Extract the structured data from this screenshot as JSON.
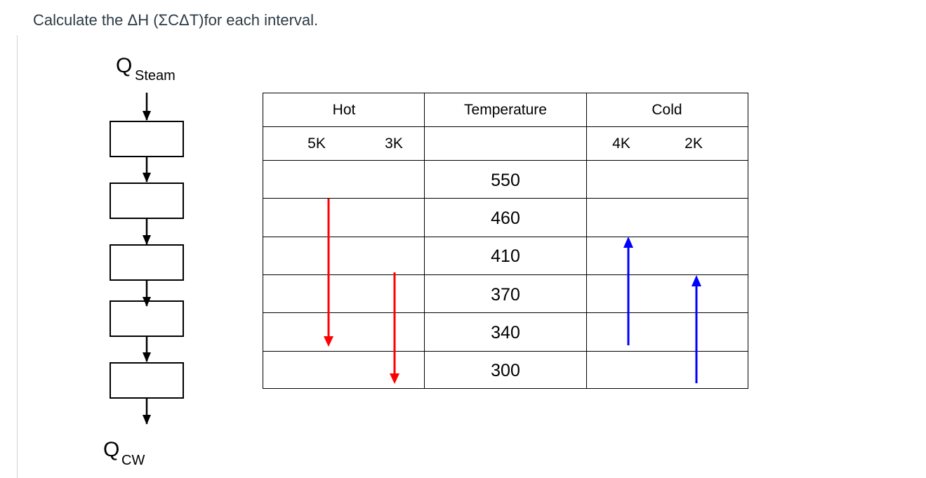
{
  "question": "Calculate the ΔH (ΣCΔT)for each interval.",
  "cascade": {
    "top_symbol": "Q",
    "top_subscript": "Steam",
    "bottom_symbol": "Q",
    "bottom_subscript": "CW",
    "box_count": 5
  },
  "table": {
    "headers": {
      "hot": "Hot",
      "temperature": "Temperature",
      "cold": "Cold"
    },
    "hot_streams": [
      "5K",
      "3K"
    ],
    "cold_streams": [
      "4K",
      "2K"
    ],
    "temperatures": [
      "550",
      "460",
      "410",
      "370",
      "340",
      "300"
    ]
  },
  "streams": [
    {
      "name": "5K",
      "side": "hot",
      "from": "460",
      "to": "340",
      "color": "#ff0000"
    },
    {
      "name": "3K",
      "side": "hot",
      "from": "370",
      "to": "300",
      "color": "#ff0000"
    },
    {
      "name": "4K",
      "side": "cold",
      "from": "340",
      "to": "410",
      "color": "#0000ff"
    },
    {
      "name": "2K",
      "side": "cold",
      "from": "300",
      "to": "370",
      "color": "#0000ff"
    }
  ]
}
